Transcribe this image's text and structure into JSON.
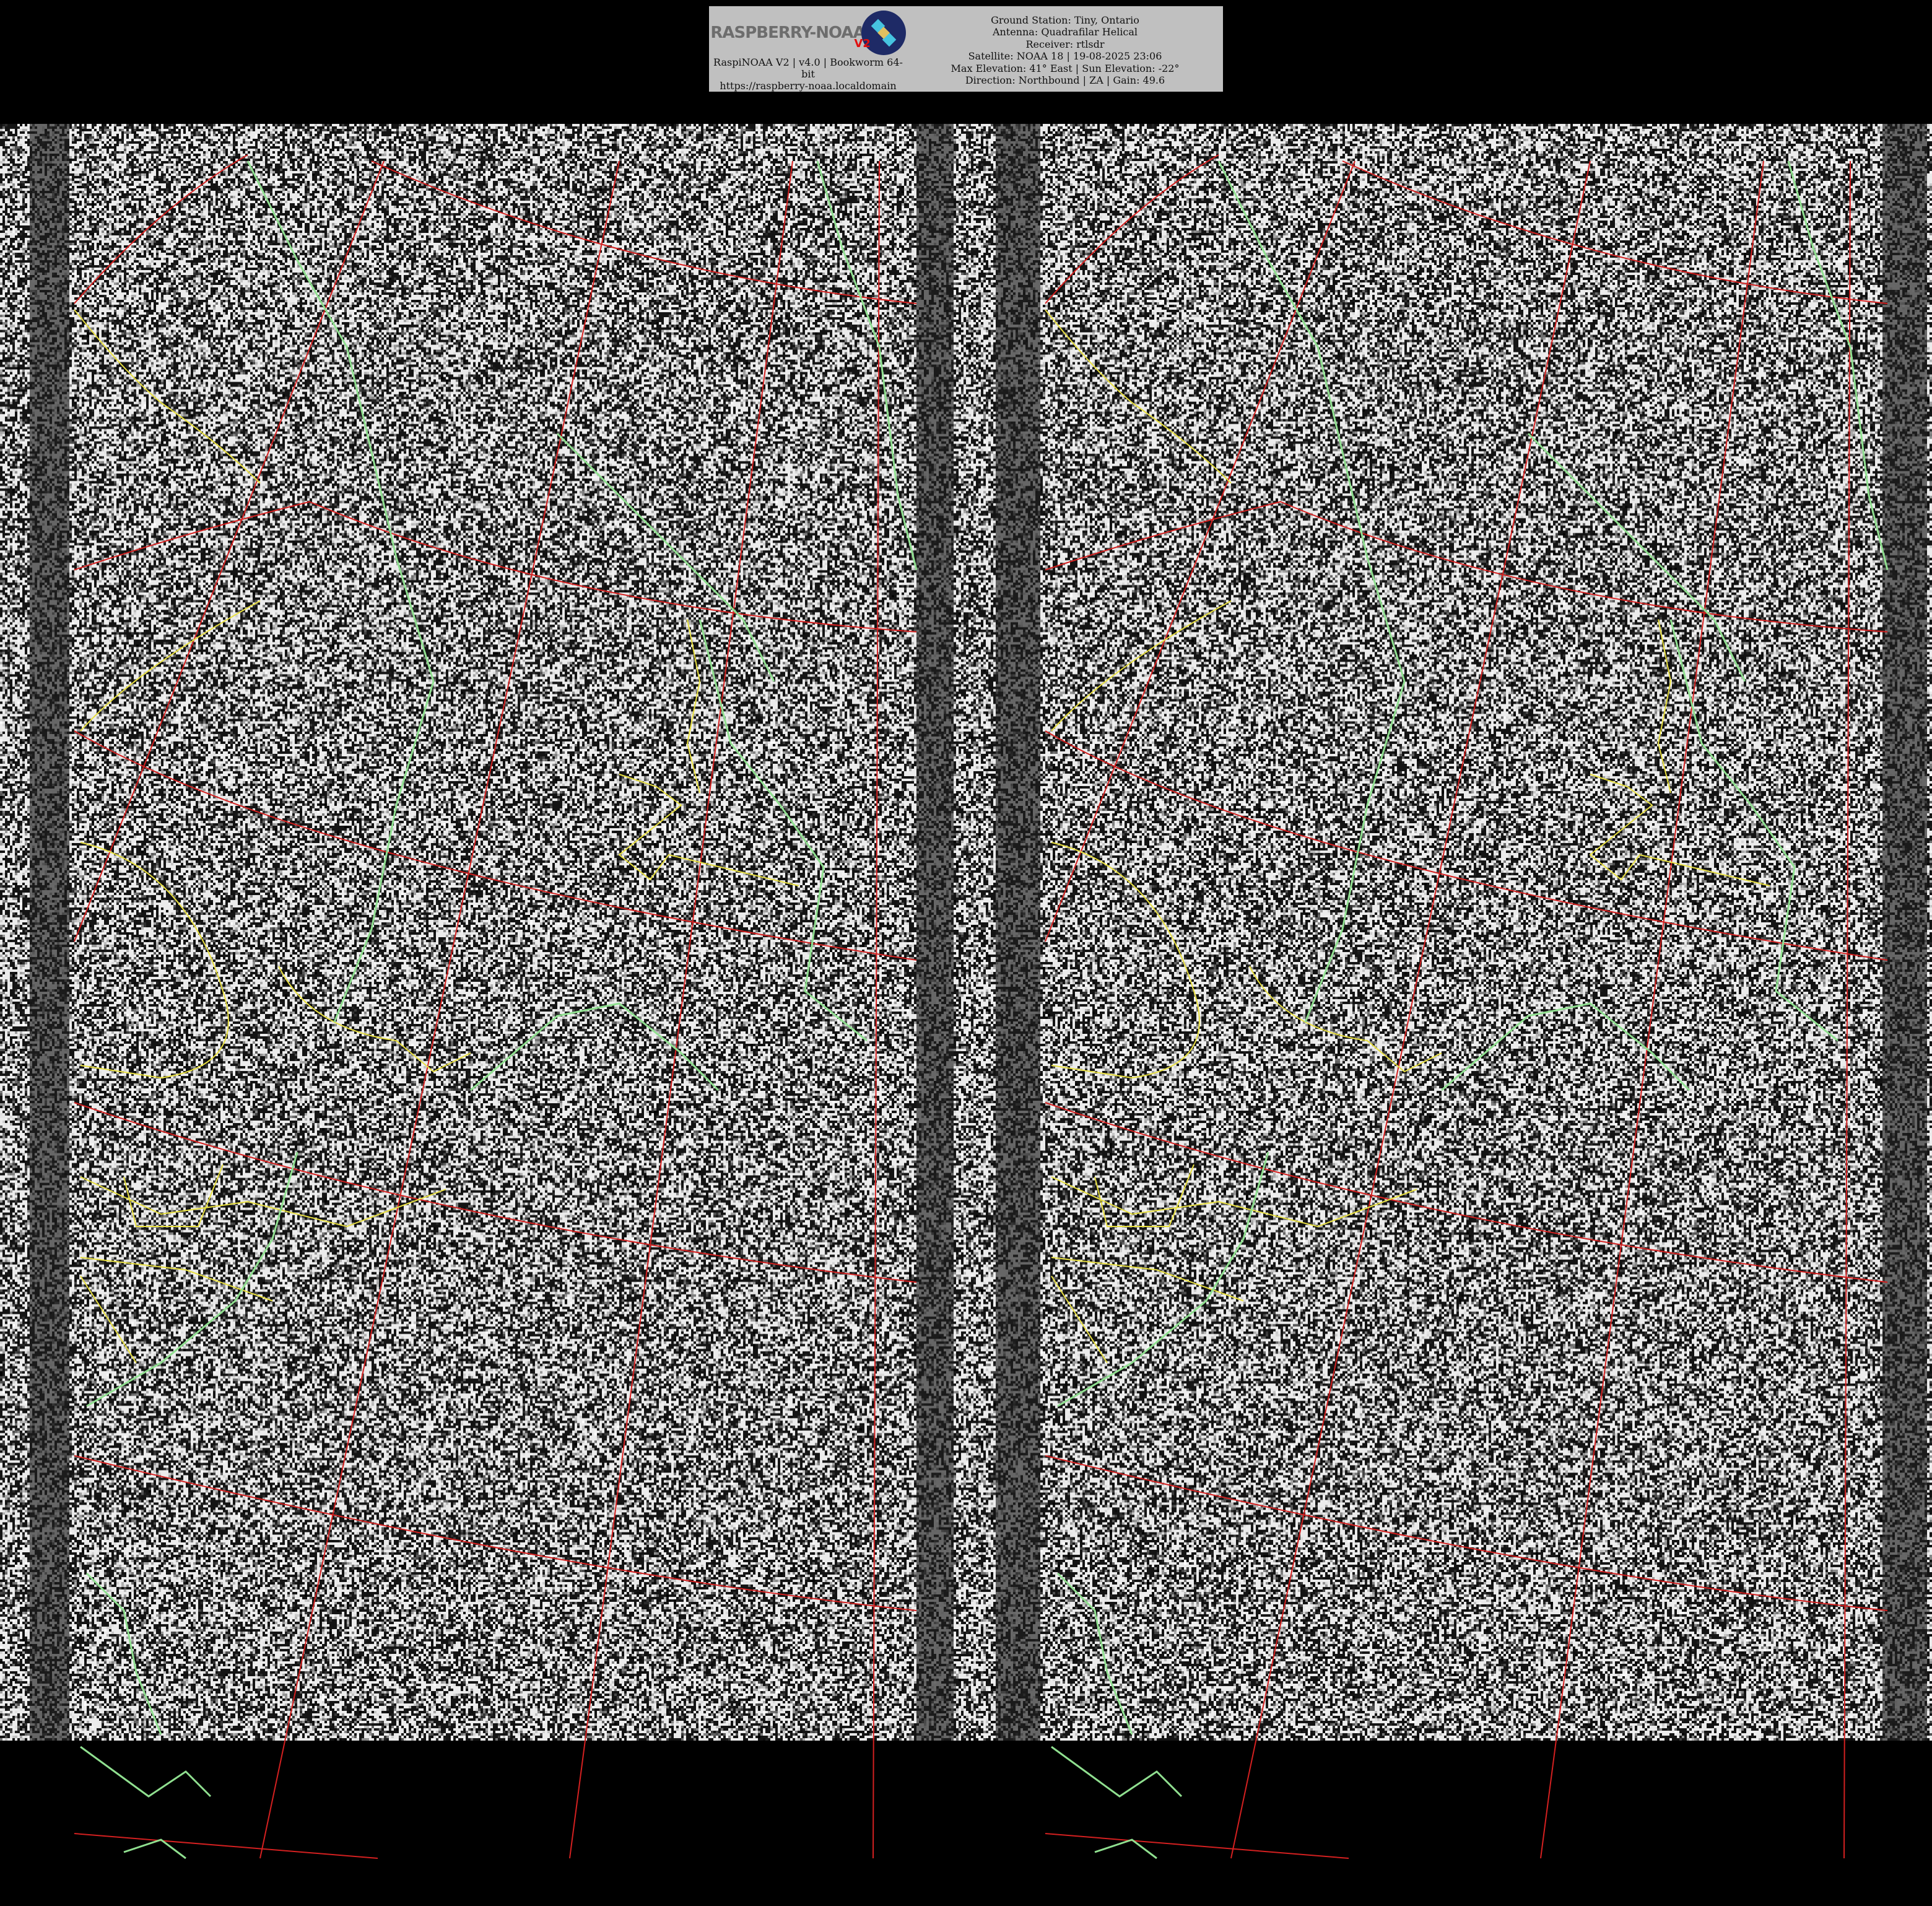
{
  "header": {
    "logo_text": "RASPBERRY-NOAA",
    "logo_badge": "V2",
    "software_line": "RaspiNOAA V2 | v4.0 | Bookworm 64-bit",
    "url": "https://raspberry-noaa.localdomain",
    "info_lines": [
      "Ground Station: Tiny, Ontario",
      "Antenna: Quadrafilar Helical",
      "Receiver: rtlsdr",
      "Satellite: NOAA 18 | 19-08-2025 23:06",
      "Max Elevation: 41° East | Sun Elevation: -22°",
      "Direction: Northbound | ZA | Gain: 49.6"
    ]
  },
  "image": {
    "panels": [
      "channel-a",
      "channel-b"
    ],
    "overlay_colors": {
      "grid": "#d42020",
      "borders": "#e8e040",
      "coastline": "#90e090"
    },
    "header_background": "#c0c0c0"
  }
}
